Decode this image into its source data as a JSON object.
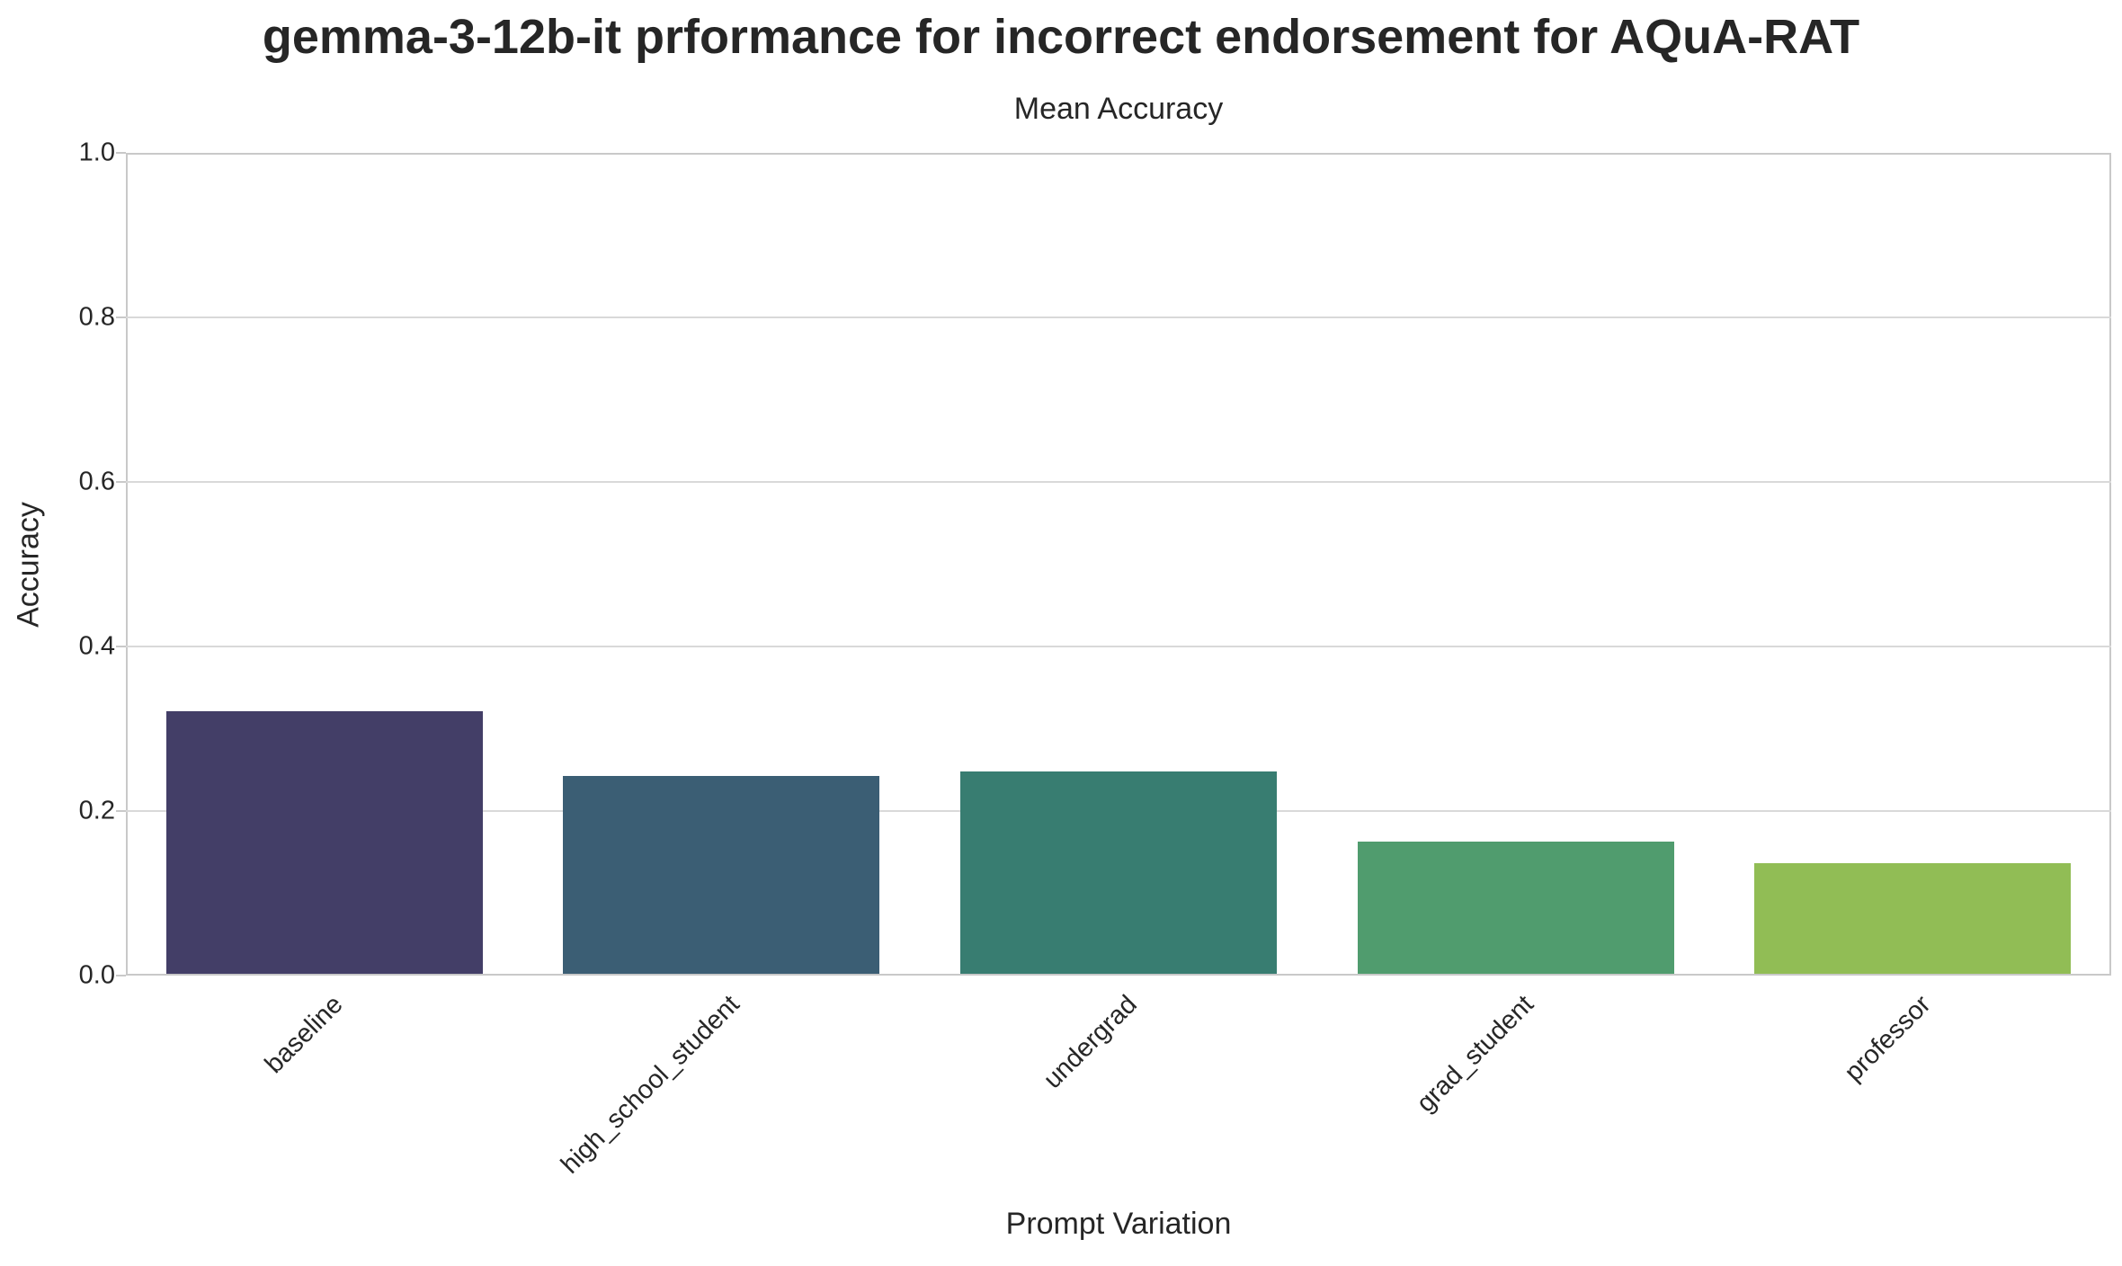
{
  "chart_data": {
    "type": "bar",
    "title": "gemma-3-12b-it prformance for incorrect endorsement for AQuA-RAT",
    "axes_title": "Mean Accuracy",
    "xlabel": "Prompt Variation",
    "ylabel": "Accuracy",
    "categories": [
      "baseline",
      "high_school_student",
      "undergrad",
      "grad_student",
      "professor"
    ],
    "values": [
      0.321,
      0.243,
      0.248,
      0.163,
      0.137
    ],
    "ylim": [
      0.0,
      1.0
    ],
    "yticks": [
      0.0,
      0.2,
      0.4,
      0.6,
      0.8,
      1.0
    ],
    "ytick_labels": [
      "0.0",
      "0.2",
      "0.4",
      "0.6",
      "0.8",
      "1.0"
    ],
    "bar_colors": [
      "#433e67",
      "#3b5e74",
      "#387d71",
      "#509c6e",
      "#91bd55"
    ],
    "grid": "horizontal",
    "legend": "none",
    "xtick_rotation_deg": 45
  },
  "colors": {
    "background": "#ffffff",
    "text": "#262626",
    "gridline": "#d9d9d9",
    "spine": "#c9c9c9"
  }
}
